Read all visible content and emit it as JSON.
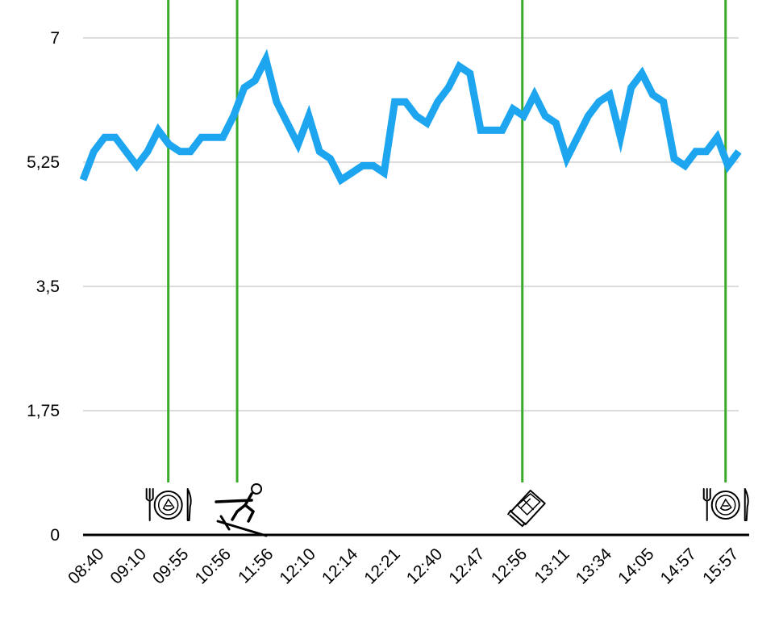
{
  "chart_data": {
    "type": "line",
    "title": "",
    "xlabel": "",
    "ylabel": "",
    "ylim": [
      0,
      7
    ],
    "yticks": [
      {
        "value": 0,
        "label": "0"
      },
      {
        "value": 1.75,
        "label": "1,75"
      },
      {
        "value": 3.5,
        "label": "3,5"
      },
      {
        "value": 5.25,
        "label": "5,25"
      },
      {
        "value": 7,
        "label": "7"
      }
    ],
    "x_tick_labels": [
      "08:40",
      "09:10",
      "09:55",
      "10:56",
      "11:56",
      "12:10",
      "12:14",
      "12:21",
      "12:40",
      "12:47",
      "12:56",
      "13:11",
      "13:34",
      "14:05",
      "14:57",
      "15:57"
    ],
    "grid": true,
    "line_color": "#1ea5ef",
    "marker_line_color": "#3aaa2a",
    "series": [
      {
        "values": [
          5.0,
          5.4,
          5.6,
          5.6,
          5.4,
          5.2,
          5.4,
          5.7,
          5.5,
          5.4,
          5.4,
          5.6,
          5.6,
          5.6,
          5.9,
          6.3,
          6.4,
          6.7,
          6.1,
          5.8,
          5.5,
          5.9,
          5.4,
          5.3,
          5.0,
          5.1,
          5.2,
          5.2,
          5.1,
          6.1,
          6.1,
          5.9,
          5.8,
          6.1,
          6.3,
          6.6,
          6.5,
          5.7,
          5.7,
          5.7,
          6.0,
          5.9,
          6.2,
          5.9,
          5.8,
          5.3,
          5.6,
          5.9,
          6.1,
          6.2,
          5.6,
          6.3,
          6.5,
          6.2,
          6.1,
          5.3,
          5.2,
          5.4,
          5.4,
          5.6,
          5.2,
          5.4
        ]
      }
    ],
    "event_markers": [
      {
        "position": 0.13,
        "icon": "meal-icon"
      },
      {
        "position": 0.235,
        "icon": "skiing-icon"
      },
      {
        "position": 0.67,
        "icon": "chocolate-bar-icon"
      },
      {
        "position": 0.98,
        "icon": "meal-icon"
      }
    ]
  }
}
